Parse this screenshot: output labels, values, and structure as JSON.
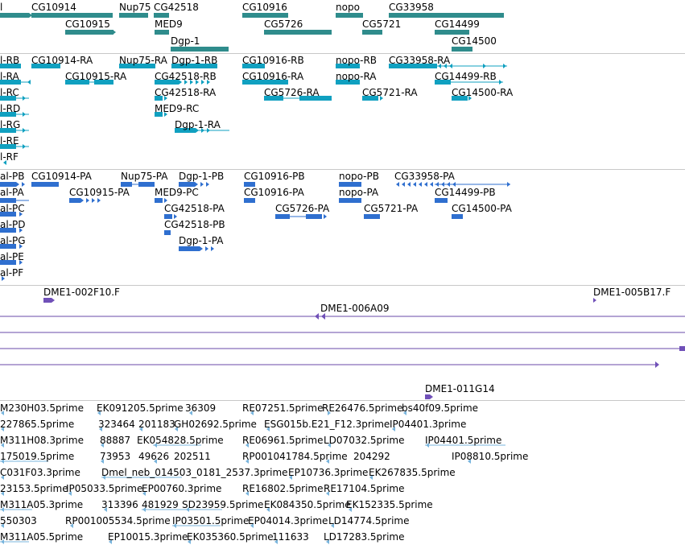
{
  "tracks": {
    "genes": {
      "color": "#2f8c8c",
      "labels": [
        "l",
        "CG10914",
        "Nup75",
        "CG42518",
        "CG10915",
        "MED9",
        "Dgp-1",
        "CG10916",
        "CG5726",
        "nopo",
        "CG5721",
        "CG33958",
        "CG14499",
        "CG14500"
      ]
    },
    "transcripts_ra": {
      "color": "#10a0c0",
      "labels": [
        "l-RB",
        "l-RA",
        "l-RC",
        "l-RD",
        "l-RG",
        "l-RE",
        "l-RF",
        "CG10914-RA",
        "CG10915-RA",
        "Nup75-RA",
        "Dgp-1-RB",
        "CG42518-RB",
        "CG42518-RA",
        "MED9-RC",
        "Dgp-1-RA",
        "CG10916-RB",
        "CG10916-RA",
        "CG5726-RA",
        "nopo-RB",
        "nopo-RA",
        "CG5721-RA",
        "CG33958-RA",
        "CG14499-RB",
        "CG14500-RA"
      ]
    },
    "proteins": {
      "color": "#2f6fcf",
      "labels": [
        "al-PB",
        "al-PA",
        "al-PC",
        "al-PD",
        "al-PG",
        "al-PE",
        "al-PF",
        "CG10914-PA",
        "CG10915-PA",
        "Nup75-PA",
        "Dgp-1-PB",
        "MED9-PC",
        "CG42518-PA",
        "CG42518-PB",
        "Dgp-1-PA",
        "CG10916-PB",
        "CG10916-PA",
        "CG5726-PA",
        "nopo-PB",
        "nopo-PA",
        "CG5721-PA",
        "CG33958-PA",
        "CG14499-PB",
        "CG14500-PA"
      ]
    },
    "clones": {
      "color": "#7050b8",
      "line_color": "#6a4aa8",
      "labels": [
        "DME1-002F10.F",
        "DME1-005B17.F",
        "DME1-006A09",
        "DME1-011G14"
      ]
    },
    "ests": {
      "color": "#78b4dc",
      "labels": [
        "M230H03.5prime",
        "EK091205.5prime",
        "36309",
        "RE07251.5prime",
        "RE26476.5prime",
        "bs40f09.5prime",
        "227865.5prime",
        "323464",
        "201183",
        "GH02692.5prime",
        "ESG015b.E21_F12.3prime",
        "IP04401.3prime",
        "M311H08.3prime",
        "88887",
        "EK054828.5prime",
        "RE06961.5prime",
        "LD07032.5prime",
        "IP04401.5prime",
        "175019.5prime",
        "73953",
        "49626",
        "202511",
        "RP001041784.5prime",
        "204292",
        "IP08810.5prime",
        "C031F03.3prime",
        "Dmel_neb_014503_0181_2537.3prime",
        "EP10736.3prime",
        "EK267835.5prime",
        "23153.5prime",
        "IP05033.5prime",
        "EP00760.3prime",
        "RE16802.5prime",
        "RE17104.5prime",
        "M311A05.3prime",
        "313396",
        "481929",
        "SD23959.5prime",
        "EK084350.5prime",
        "EK152335.5prime",
        "550303",
        "RP001005534.5prime",
        "IP03501.5prime",
        "EP04014.3prime",
        "LD14774.5prime",
        "M311A05.5prime",
        "EP10015.3prime",
        "EK035360.5prime",
        "111633",
        "LD17283.5prime"
      ]
    }
  }
}
